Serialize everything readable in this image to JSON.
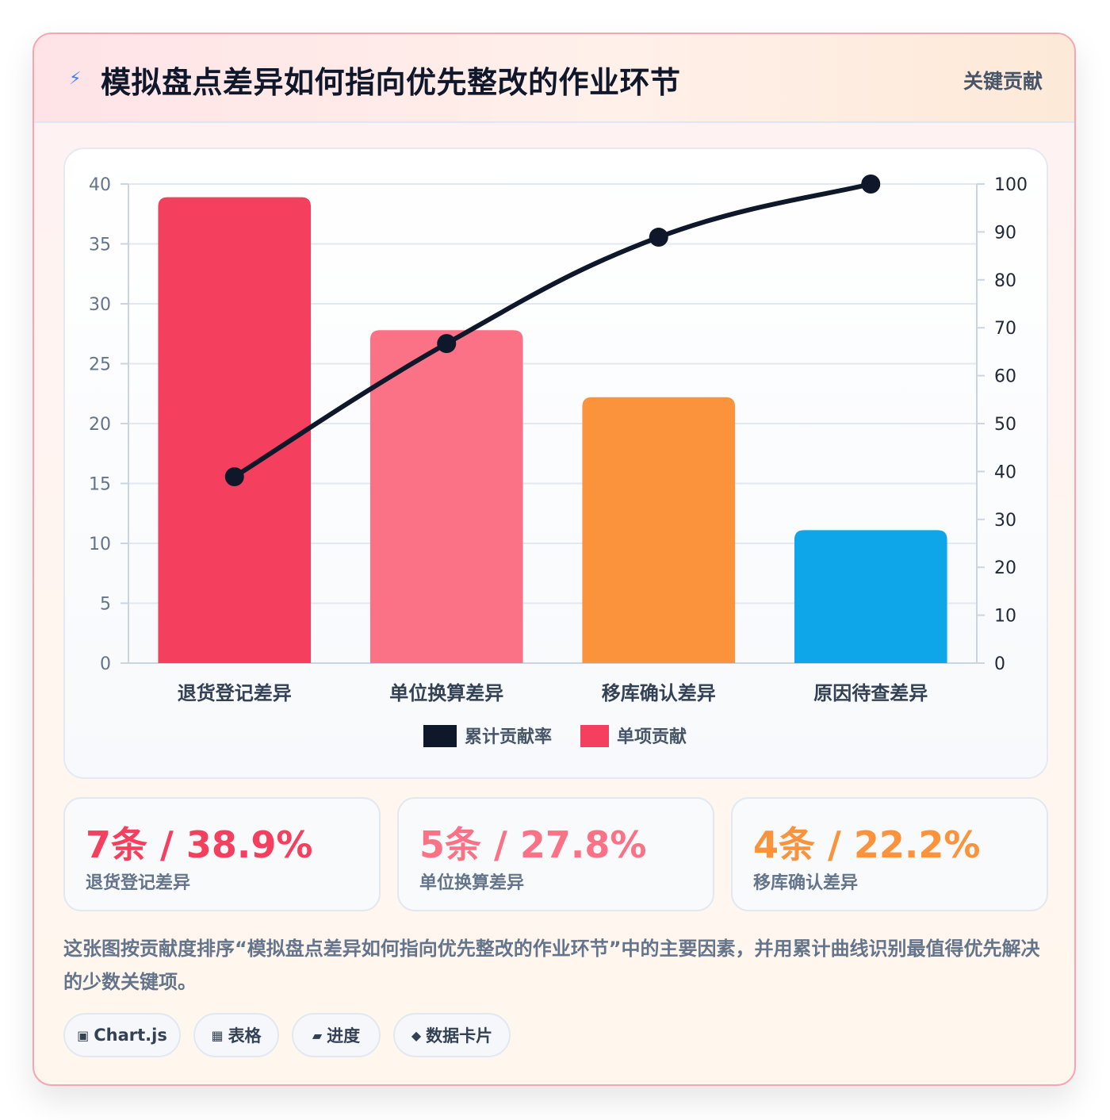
{
  "header": {
    "icon": "lightning-icon",
    "title": "模拟盘点差异如何指向优先整改的作业环节",
    "tag": "关键贡献"
  },
  "chart_data": {
    "type": "bar",
    "categories": [
      "退货登记差异",
      "单位换算差异",
      "移库确认差异",
      "原因待查差异"
    ],
    "series": [
      {
        "name": "单项贡献",
        "type": "bar",
        "axis": "left",
        "values": [
          38.9,
          27.8,
          22.2,
          11.1
        ],
        "colors": [
          "#f43f5e",
          "#fb7185",
          "#fb923c",
          "#0ea5e9"
        ]
      },
      {
        "name": "累计贡献率",
        "type": "line",
        "axis": "right",
        "values": [
          38.9,
          66.7,
          88.9,
          100
        ],
        "color": "#0f172a"
      }
    ],
    "left_axis": {
      "ylim": [
        0,
        40
      ],
      "ticks": [
        0,
        5,
        10,
        15,
        20,
        25,
        30,
        35,
        40
      ]
    },
    "right_axis": {
      "ylim": [
        0,
        100
      ],
      "ticks": [
        0,
        10,
        20,
        30,
        40,
        50,
        60,
        70,
        80,
        90,
        100
      ]
    },
    "legend": {
      "position": "bottom",
      "items": [
        {
          "label": "累计贡献率",
          "color": "#0f172a"
        },
        {
          "label": "单项贡献",
          "color": "#f43f5e"
        }
      ]
    },
    "grid": true
  },
  "stats": [
    {
      "value": "7条 / 38.9%",
      "label": "退货登记差异",
      "color": "#f43f5e"
    },
    {
      "value": "5条 / 27.8%",
      "label": "单位换算差异",
      "color": "#fb7185"
    },
    {
      "value": "4条 / 22.2%",
      "label": "移库确认差异",
      "color": "#fb923c"
    }
  ],
  "description": "这张图按贡献度排序“模拟盘点差异如何指向优先整改的作业环节”中的主要因素，并用累计曲线识别最值得优先解决的少数关键项。",
  "chips": [
    {
      "icon": "▣",
      "icon_name": "chart-icon",
      "label": "Chart.js"
    },
    {
      "icon": "▦",
      "icon_name": "table-icon",
      "label": "表格"
    },
    {
      "icon": "▰",
      "icon_name": "progress-icon",
      "label": "进度"
    },
    {
      "icon": "◆",
      "icon_name": "data-card-icon",
      "label": "数据卡片"
    }
  ]
}
